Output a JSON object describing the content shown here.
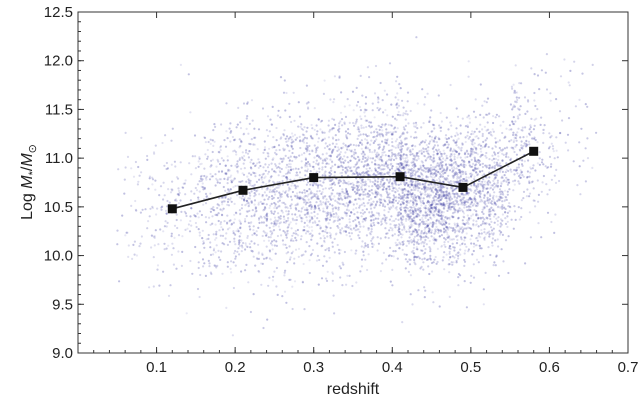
{
  "chart_data": {
    "type": "scatter",
    "title": "",
    "xlabel": "redshift",
    "ylabel_parts": {
      "prefix": "Log ",
      "mass": "M",
      "mass_sub": "*",
      "slash": "/",
      "sun": "M",
      "sun_sub": "⊙"
    },
    "xlim": [
      0.0,
      0.7
    ],
    "ylim": [
      9.0,
      12.5
    ],
    "xticks": [
      "0.1",
      "0.2",
      "0.3",
      "0.4",
      "0.5",
      "0.6",
      "0.7"
    ],
    "yticks": [
      "9.0",
      "9.5",
      "10.0",
      "10.5",
      "11.0",
      "11.5",
      "12.0",
      "12.5"
    ],
    "grid": false,
    "colors": {
      "scatter": "#4a4aa8",
      "mean_line": "#222222"
    },
    "series": [
      {
        "kind": "scatter-density",
        "description_points": "dense cloud of galaxies",
        "x_range": [
          0.05,
          0.65
        ],
        "y_range": [
          9.2,
          12.2
        ]
      },
      {
        "kind": "line-markers",
        "x": [
          0.12,
          0.21,
          0.3,
          0.41,
          0.49,
          0.58
        ],
        "y": [
          10.48,
          10.67,
          10.8,
          10.81,
          10.7,
          11.07
        ]
      }
    ]
  }
}
